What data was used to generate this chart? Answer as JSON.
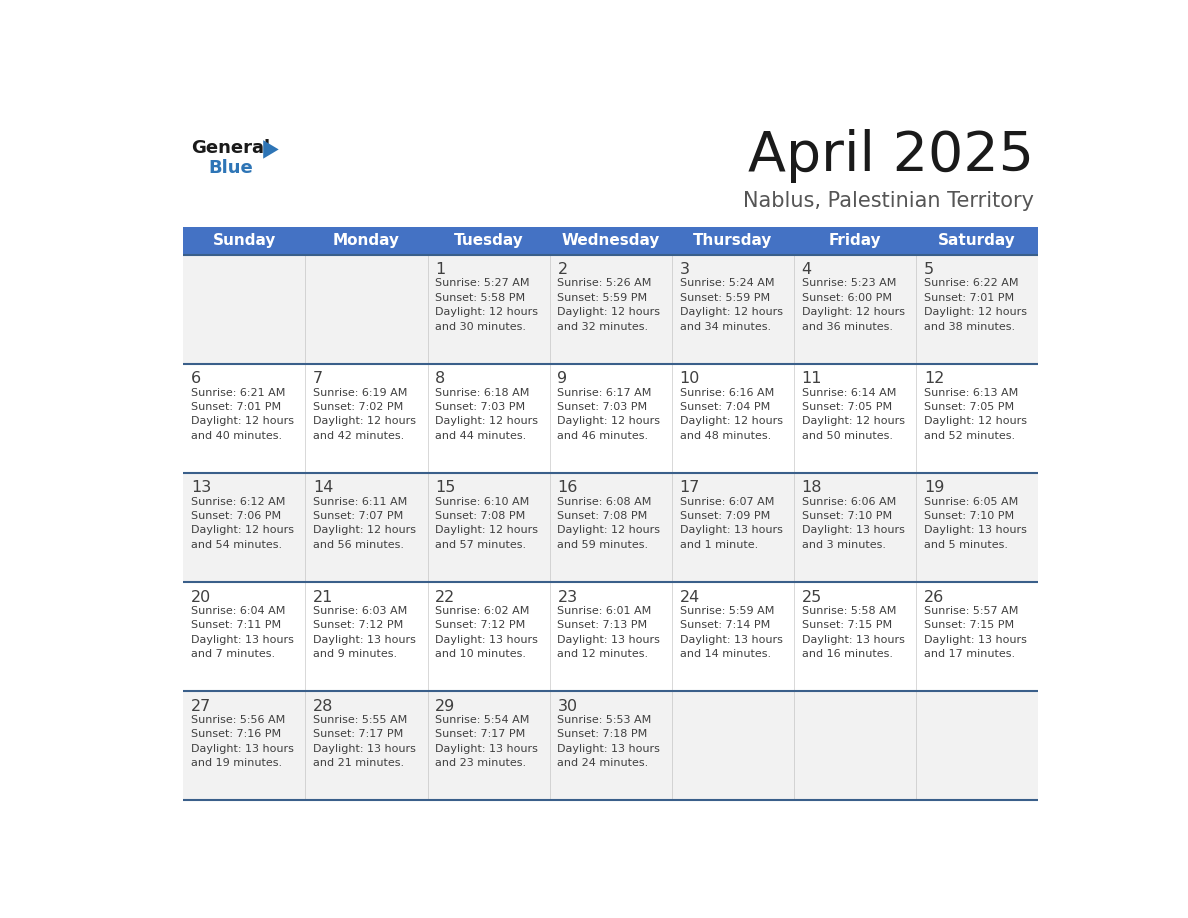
{
  "title": "April 2025",
  "subtitle": "Nablus, Palestinian Territory",
  "header_color": "#4472C4",
  "header_text_color": "#FFFFFF",
  "header_days": [
    "Sunday",
    "Monday",
    "Tuesday",
    "Wednesday",
    "Thursday",
    "Friday",
    "Saturday"
  ],
  "row_bg_colors": [
    "#F2F2F2",
    "#FFFFFF",
    "#F2F2F2",
    "#FFFFFF",
    "#F2F2F2"
  ],
  "separator_color": "#3A5F8A",
  "text_color": "#404040",
  "calendar": [
    [
      {
        "day": "",
        "info": ""
      },
      {
        "day": "",
        "info": ""
      },
      {
        "day": "1",
        "info": "Sunrise: 5:27 AM\nSunset: 5:58 PM\nDaylight: 12 hours\nand 30 minutes."
      },
      {
        "day": "2",
        "info": "Sunrise: 5:26 AM\nSunset: 5:59 PM\nDaylight: 12 hours\nand 32 minutes."
      },
      {
        "day": "3",
        "info": "Sunrise: 5:24 AM\nSunset: 5:59 PM\nDaylight: 12 hours\nand 34 minutes."
      },
      {
        "day": "4",
        "info": "Sunrise: 5:23 AM\nSunset: 6:00 PM\nDaylight: 12 hours\nand 36 minutes."
      },
      {
        "day": "5",
        "info": "Sunrise: 6:22 AM\nSunset: 7:01 PM\nDaylight: 12 hours\nand 38 minutes."
      }
    ],
    [
      {
        "day": "6",
        "info": "Sunrise: 6:21 AM\nSunset: 7:01 PM\nDaylight: 12 hours\nand 40 minutes."
      },
      {
        "day": "7",
        "info": "Sunrise: 6:19 AM\nSunset: 7:02 PM\nDaylight: 12 hours\nand 42 minutes."
      },
      {
        "day": "8",
        "info": "Sunrise: 6:18 AM\nSunset: 7:03 PM\nDaylight: 12 hours\nand 44 minutes."
      },
      {
        "day": "9",
        "info": "Sunrise: 6:17 AM\nSunset: 7:03 PM\nDaylight: 12 hours\nand 46 minutes."
      },
      {
        "day": "10",
        "info": "Sunrise: 6:16 AM\nSunset: 7:04 PM\nDaylight: 12 hours\nand 48 minutes."
      },
      {
        "day": "11",
        "info": "Sunrise: 6:14 AM\nSunset: 7:05 PM\nDaylight: 12 hours\nand 50 minutes."
      },
      {
        "day": "12",
        "info": "Sunrise: 6:13 AM\nSunset: 7:05 PM\nDaylight: 12 hours\nand 52 minutes."
      }
    ],
    [
      {
        "day": "13",
        "info": "Sunrise: 6:12 AM\nSunset: 7:06 PM\nDaylight: 12 hours\nand 54 minutes."
      },
      {
        "day": "14",
        "info": "Sunrise: 6:11 AM\nSunset: 7:07 PM\nDaylight: 12 hours\nand 56 minutes."
      },
      {
        "day": "15",
        "info": "Sunrise: 6:10 AM\nSunset: 7:08 PM\nDaylight: 12 hours\nand 57 minutes."
      },
      {
        "day": "16",
        "info": "Sunrise: 6:08 AM\nSunset: 7:08 PM\nDaylight: 12 hours\nand 59 minutes."
      },
      {
        "day": "17",
        "info": "Sunrise: 6:07 AM\nSunset: 7:09 PM\nDaylight: 13 hours\nand 1 minute."
      },
      {
        "day": "18",
        "info": "Sunrise: 6:06 AM\nSunset: 7:10 PM\nDaylight: 13 hours\nand 3 minutes."
      },
      {
        "day": "19",
        "info": "Sunrise: 6:05 AM\nSunset: 7:10 PM\nDaylight: 13 hours\nand 5 minutes."
      }
    ],
    [
      {
        "day": "20",
        "info": "Sunrise: 6:04 AM\nSunset: 7:11 PM\nDaylight: 13 hours\nand 7 minutes."
      },
      {
        "day": "21",
        "info": "Sunrise: 6:03 AM\nSunset: 7:12 PM\nDaylight: 13 hours\nand 9 minutes."
      },
      {
        "day": "22",
        "info": "Sunrise: 6:02 AM\nSunset: 7:12 PM\nDaylight: 13 hours\nand 10 minutes."
      },
      {
        "day": "23",
        "info": "Sunrise: 6:01 AM\nSunset: 7:13 PM\nDaylight: 13 hours\nand 12 minutes."
      },
      {
        "day": "24",
        "info": "Sunrise: 5:59 AM\nSunset: 7:14 PM\nDaylight: 13 hours\nand 14 minutes."
      },
      {
        "day": "25",
        "info": "Sunrise: 5:58 AM\nSunset: 7:15 PM\nDaylight: 13 hours\nand 16 minutes."
      },
      {
        "day": "26",
        "info": "Sunrise: 5:57 AM\nSunset: 7:15 PM\nDaylight: 13 hours\nand 17 minutes."
      }
    ],
    [
      {
        "day": "27",
        "info": "Sunrise: 5:56 AM\nSunset: 7:16 PM\nDaylight: 13 hours\nand 19 minutes."
      },
      {
        "day": "28",
        "info": "Sunrise: 5:55 AM\nSunset: 7:17 PM\nDaylight: 13 hours\nand 21 minutes."
      },
      {
        "day": "29",
        "info": "Sunrise: 5:54 AM\nSunset: 7:17 PM\nDaylight: 13 hours\nand 23 minutes."
      },
      {
        "day": "30",
        "info": "Sunrise: 5:53 AM\nSunset: 7:18 PM\nDaylight: 13 hours\nand 24 minutes."
      },
      {
        "day": "",
        "info": ""
      },
      {
        "day": "",
        "info": ""
      },
      {
        "day": "",
        "info": ""
      }
    ]
  ]
}
